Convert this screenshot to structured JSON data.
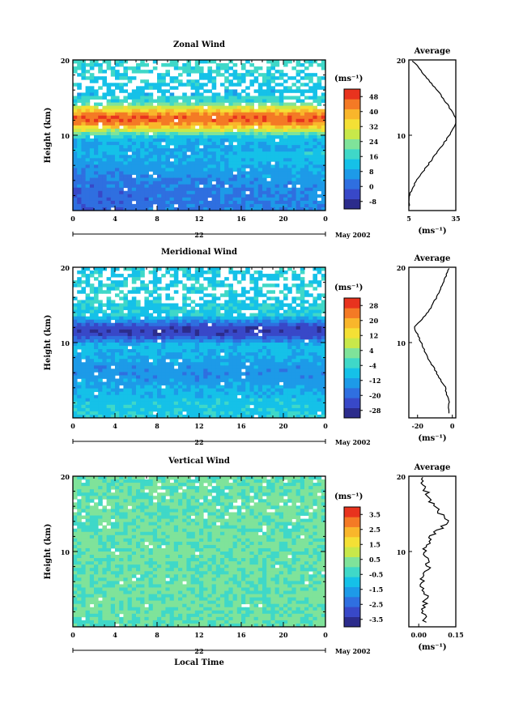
{
  "chart_data": [
    {
      "type": "heatmap",
      "title": "Zonal Wind",
      "ylabel": "Height (km)",
      "xlabel": "",
      "date_label": "May 2002",
      "day_label": "22",
      "xlim": [
        0,
        24
      ],
      "ylim": [
        0,
        20
      ],
      "x_ticks": [
        "0",
        "4",
        "8",
        "12",
        "16",
        "20",
        "0"
      ],
      "y_ticks": [
        "10",
        "20"
      ],
      "colorbar": {
        "units": "(ms⁻¹)",
        "ticks": [
          "-8",
          "0",
          "8",
          "16",
          "24",
          "32",
          "40",
          "48"
        ],
        "range": [
          -12,
          52
        ],
        "colors": [
          "#2c2c8c",
          "#3848c8",
          "#2f6fe0",
          "#1d9ae8",
          "#15c1e8",
          "#3fd8c8",
          "#7fe39a",
          "#c8e84a",
          "#f4e035",
          "#f9b62b",
          "#f47a25",
          "#e8331e"
        ]
      },
      "field_description": "Upwelling westerly jet centered near 12 km (values ~40-50 ms-1), weak/negative winds below 6 km; data gaps above 14 km",
      "profile_samples": {
        "height_km": [
          2,
          4,
          6,
          8,
          10,
          12,
          14,
          16,
          18,
          20
        ],
        "value": [
          5,
          10,
          17,
          24,
          31,
          36,
          30,
          23,
          15,
          7
        ]
      },
      "average": {
        "title": "Average",
        "xlim": [
          5,
          35
        ],
        "x_ticks": [
          "5",
          "35"
        ],
        "xlabel": "(ms⁻¹)",
        "y_ticks": [
          "10",
          "20"
        ]
      }
    },
    {
      "type": "heatmap",
      "title": "Meridional Wind",
      "ylabel": "Height (km)",
      "xlabel": "",
      "date_label": "May 2002",
      "day_label": "22",
      "xlim": [
        0,
        24
      ],
      "ylim": [
        0,
        20
      ],
      "x_ticks": [
        "0",
        "4",
        "8",
        "12",
        "16",
        "20",
        "0"
      ],
      "y_ticks": [
        "10",
        "20"
      ],
      "colorbar": {
        "units": "(ms⁻¹)",
        "ticks": [
          "-28",
          "-20",
          "-12",
          "-4",
          "4",
          "12",
          "20",
          "28"
        ],
        "range": [
          -32,
          32
        ],
        "colors": [
          "#2c2c8c",
          "#3848c8",
          "#2f6fe0",
          "#1d9ae8",
          "#15c1e8",
          "#3fd8c8",
          "#7fe39a",
          "#c8e84a",
          "#f4e035",
          "#f9b62b",
          "#f47a25",
          "#e8331e"
        ]
      },
      "field_description": "Strong northerly (negative) flow near 11-13 km (about -25 ms-1), weaker negative values below; sparse data above 14 km",
      "profile_samples": {
        "height_km": [
          2,
          4,
          6,
          8,
          10,
          12,
          14,
          16,
          18,
          20
        ],
        "value": [
          -2,
          -4,
          -9,
          -14,
          -18,
          -22,
          -14,
          -9,
          -5,
          -2
        ]
      },
      "average": {
        "title": "Average",
        "xlim": [
          -25,
          2
        ],
        "x_ticks": [
          "-20",
          "0"
        ],
        "xlabel": "(ms⁻¹)",
        "y_ticks": [
          "10",
          "20"
        ]
      }
    },
    {
      "type": "heatmap",
      "title": "Vertical Wind",
      "ylabel": "Height (km)",
      "xlabel": "Local Time",
      "date_label": "May 2002",
      "day_label": "22",
      "xlim": [
        0,
        24
      ],
      "ylim": [
        0,
        20
      ],
      "x_ticks": [
        "0",
        "4",
        "8",
        "12",
        "16",
        "20",
        "0"
      ],
      "y_ticks": [
        "10",
        "20"
      ],
      "colorbar": {
        "units": "(ms⁻¹)",
        "ticks": [
          "-3.5",
          "-2.5",
          "-1.5",
          "-0.5",
          "0.5",
          "1.5",
          "2.5",
          "3.5"
        ],
        "range": [
          -4,
          4
        ],
        "colors": [
          "#2c2c8c",
          "#3848c8",
          "#2f6fe0",
          "#1d9ae8",
          "#15c1e8",
          "#3fd8c8",
          "#7fe39a",
          "#c8e84a",
          "#f4e035",
          "#f9b62b",
          "#f47a25",
          "#e8331e"
        ]
      },
      "field_description": "Near-zero vertical velocity throughout (roughly -0.5 to 0.5 ms-1) with scattered gaps",
      "profile_samples": {
        "height_km": [
          2,
          4,
          6,
          8,
          10,
          12,
          14,
          16,
          18,
          20
        ],
        "value": [
          0.02,
          0.03,
          0.01,
          0.04,
          0.02,
          0.05,
          0.12,
          0.06,
          0.03,
          0.01
        ]
      },
      "average": {
        "title": "Average",
        "xlim": [
          -0.04,
          0.15
        ],
        "x_ticks": [
          "0.00",
          "0.15"
        ],
        "xlabel": "(ms⁻¹)",
        "y_ticks": [
          "10",
          "20"
        ]
      }
    }
  ]
}
